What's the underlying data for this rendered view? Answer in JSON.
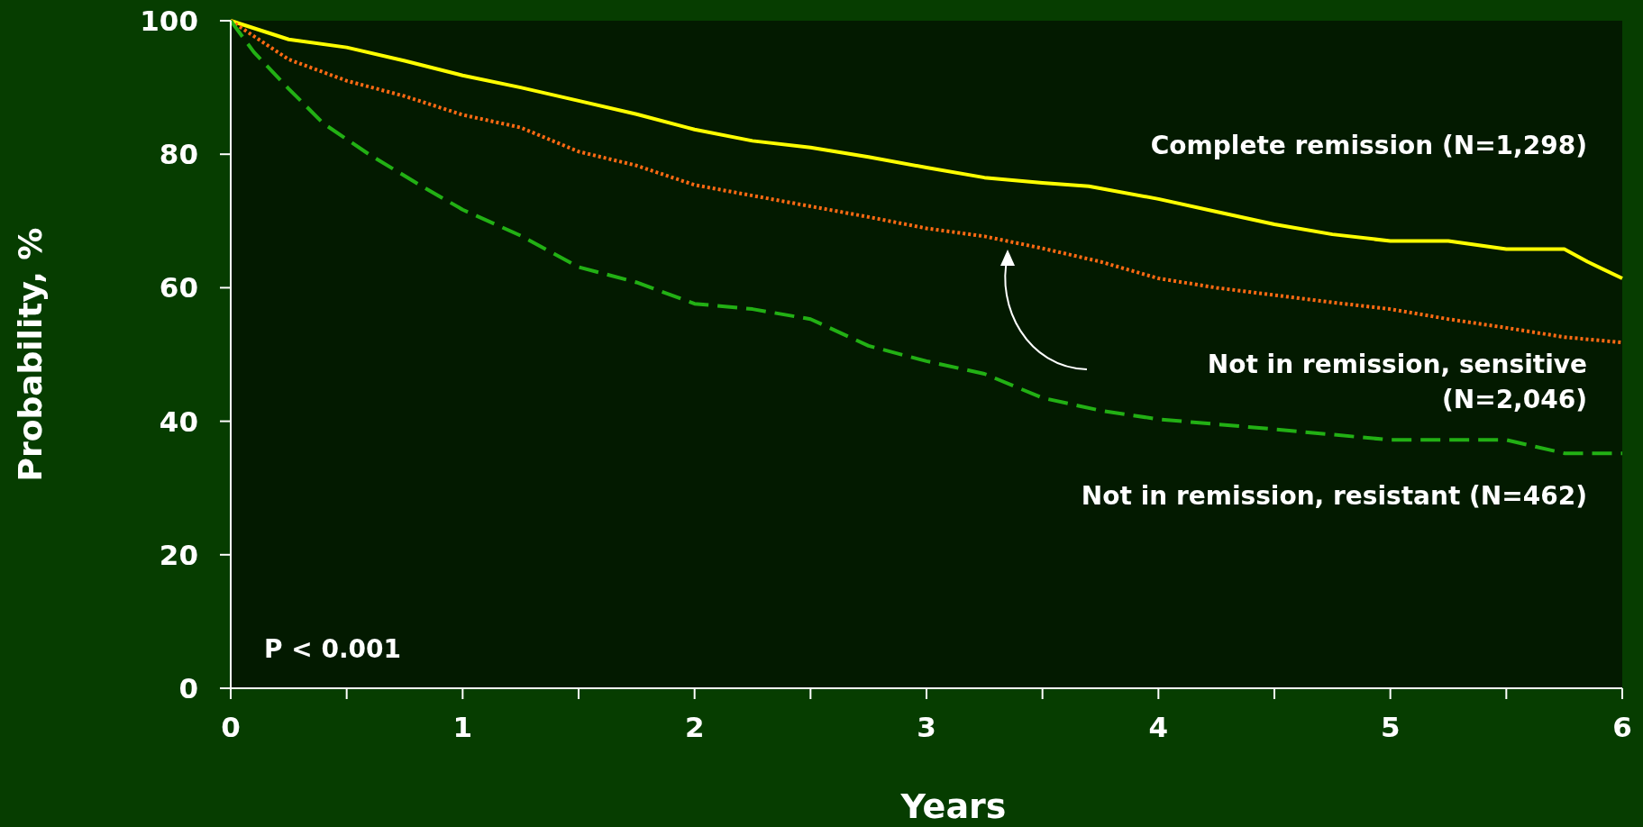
{
  "chart_data": {
    "type": "line",
    "xlabel": "Years",
    "ylabel": "Probability, %",
    "xlim": [
      0,
      6
    ],
    "ylim": [
      0,
      100
    ],
    "xticks": [
      0,
      1,
      2,
      3,
      4,
      5,
      6
    ],
    "yticks": [
      0,
      20,
      40,
      60,
      80,
      100
    ],
    "grid": false,
    "annotations": [
      "P < 0.001"
    ],
    "series": [
      {
        "name": "Complete remission (N=1,298)",
        "color": "#ffff00",
        "line_style": "solid",
        "x": [
          0,
          0.25,
          0.5,
          0.75,
          1,
          1.25,
          1.5,
          1.75,
          2,
          2.25,
          2.5,
          2.75,
          3,
          3.25,
          3.5,
          3.7,
          4,
          4.25,
          4.5,
          4.75,
          5,
          5.25,
          5.5,
          5.75,
          5.85,
          6
        ],
        "values": [
          100,
          97.2,
          96,
          94,
          91.8,
          90,
          88,
          86,
          83.7,
          82,
          81,
          79.6,
          78,
          76.5,
          75.7,
          75.2,
          73.3,
          71.4,
          69.5,
          68,
          67,
          67,
          65.8,
          65.8,
          63.9,
          61.4
        ]
      },
      {
        "name": "Not in remission, sensitive (N=2,046)",
        "color": "#ff6a13",
        "line_style": "dotted",
        "x": [
          0,
          0.25,
          0.5,
          0.75,
          1,
          1.25,
          1.5,
          1.75,
          2,
          2.25,
          2.5,
          2.75,
          3,
          3.25,
          3.5,
          3.75,
          4,
          4.25,
          4.5,
          4.75,
          5,
          5.25,
          5.5,
          5.75,
          6
        ],
        "values": [
          100,
          94.2,
          91,
          88.7,
          85.9,
          84,
          80.4,
          78.3,
          75.4,
          73.8,
          72.2,
          70.6,
          68.9,
          67.7,
          65.9,
          63.9,
          61.4,
          60,
          58.9,
          57.8,
          56.8,
          55.3,
          54,
          52.6,
          51.8
        ]
      },
      {
        "name": "Not in remission, resistant (N=462)",
        "color": "#22b014",
        "line_style": "dashed",
        "x": [
          0,
          0.1,
          0.25,
          0.4,
          0.6,
          0.8,
          1,
          1.25,
          1.5,
          1.75,
          2,
          2.25,
          2.5,
          2.75,
          3,
          3.25,
          3.5,
          3.75,
          4,
          4.5,
          5,
          5.5,
          5.75,
          6
        ],
        "values": [
          100,
          95.3,
          89.8,
          84.6,
          79.9,
          75.7,
          71.7,
          67.8,
          63.1,
          60.8,
          57.6,
          56.8,
          55.3,
          51.3,
          49,
          47.1,
          43.5,
          41.6,
          40.3,
          38.8,
          37.2,
          37.2,
          35.2,
          35.2
        ]
      }
    ]
  }
}
